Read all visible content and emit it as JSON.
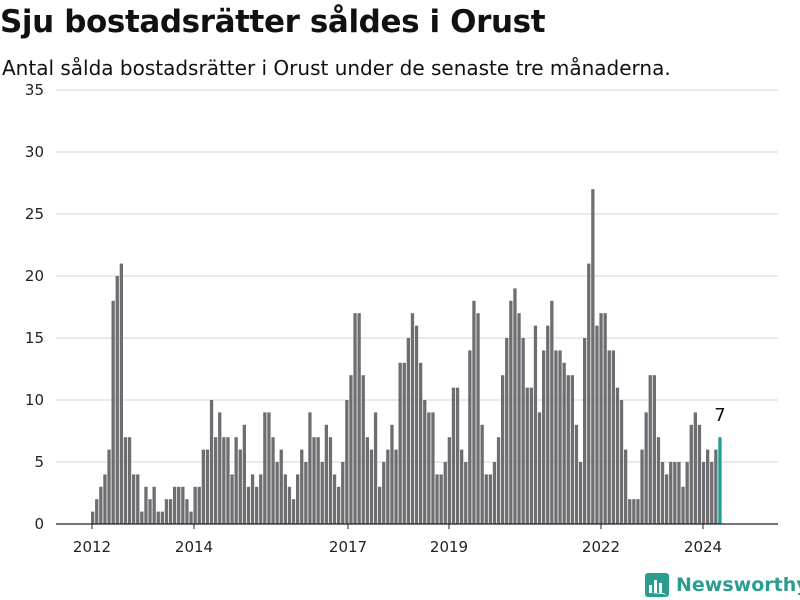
{
  "title": "Sju bostadsrätter såldes i Orust",
  "subtitle": "Antal sålda bostadsrätter i Orust under de senaste tre månaderna.",
  "brand": {
    "name": "Newsworthy",
    "icon": "newsworthy-logo-icon"
  },
  "colors": {
    "bar": "#6e6e72",
    "highlight": "#1f9e93",
    "grid": "#d6d6d6",
    "brand": "#2a9d8f"
  },
  "chart_data": {
    "type": "bar",
    "x_start": "2011-01",
    "frequency": "monthly",
    "values": [
      1,
      2,
      3,
      4,
      6,
      18,
      20,
      21,
      7,
      7,
      4,
      4,
      1,
      3,
      2,
      3,
      1,
      1,
      2,
      2,
      3,
      3,
      3,
      2,
      1,
      3,
      3,
      6,
      6,
      10,
      7,
      9,
      7,
      7,
      4,
      7,
      6,
      8,
      3,
      4,
      3,
      4,
      9,
      9,
      7,
      5,
      6,
      4,
      3,
      2,
      4,
      6,
      5,
      9,
      7,
      7,
      5,
      8,
      7,
      4,
      3,
      5,
      10,
      12,
      17,
      17,
      12,
      7,
      6,
      9,
      3,
      5,
      6,
      8,
      6,
      13,
      13,
      15,
      17,
      16,
      13,
      10,
      9,
      9,
      4,
      4,
      5,
      7,
      11,
      11,
      6,
      5,
      14,
      18,
      17,
      8,
      4,
      4,
      5,
      7,
      12,
      15,
      18,
      19,
      17,
      15,
      11,
      11,
      16,
      9,
      14,
      16,
      18,
      14,
      14,
      13,
      12,
      12,
      8,
      5,
      15,
      21,
      27,
      16,
      17,
      17,
      14,
      14,
      11,
      10,
      6,
      2,
      2,
      2,
      6,
      9,
      12,
      12,
      7,
      5,
      4,
      5,
      5,
      5,
      3,
      5,
      8,
      9,
      8,
      5,
      6,
      5,
      6,
      7
    ],
    "highlight_last": true,
    "last_value_label": "7",
    "yticks": [
      0,
      5,
      10,
      15,
      20,
      25,
      30,
      35
    ],
    "ylim": [
      0,
      35
    ],
    "xticks": [
      "2012",
      "2014",
      "2017",
      "2019",
      "2022",
      "2024"
    ],
    "grid": "horizontal",
    "legend": "none"
  }
}
